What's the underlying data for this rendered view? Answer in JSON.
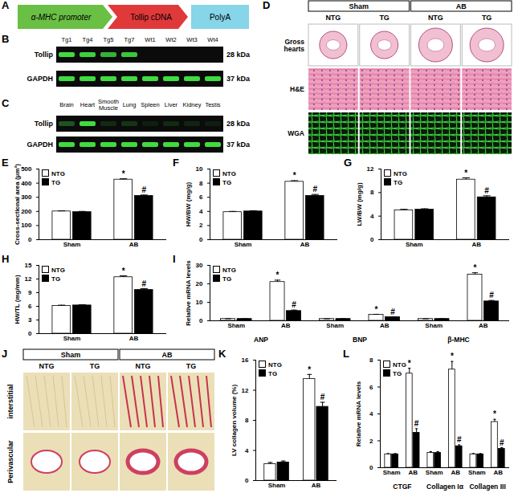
{
  "panels": {
    "A": {
      "letter": "A",
      "segments": [
        "α-MHC promoter",
        "Tollip cDNA",
        "PolyA"
      ]
    },
    "B": {
      "letter": "B",
      "lanes": [
        "Tg1",
        "Tg4",
        "Tg5",
        "Tg7",
        "Wt1",
        "Wt2",
        "Wt3",
        "Wt4"
      ],
      "bands": [
        {
          "name": "Tollip",
          "size": "28 kDa",
          "intensity": [
            1,
            0.95,
            0.8,
            0.9,
            0,
            0,
            0,
            0
          ]
        },
        {
          "name": "GAPDH",
          "size": "37 kDa",
          "intensity": [
            1,
            1,
            1,
            1,
            1,
            1,
            1,
            1
          ]
        }
      ]
    },
    "C": {
      "letter": "C",
      "lanes": [
        "Brain",
        "Heart",
        "Smooth Muscle",
        "Lung",
        "Spleen",
        "Liver",
        "Kidney",
        "Testis"
      ],
      "bands": [
        {
          "name": "Tollip",
          "size": "28 kDa",
          "intensity": [
            0.35,
            1,
            0.15,
            0.2,
            0.1,
            0.15,
            0.12,
            0.1
          ]
        },
        {
          "name": "GAPDH",
          "size": "37 kDa",
          "intensity": [
            1,
            1,
            1,
            1,
            1,
            1,
            1,
            1
          ]
        }
      ]
    },
    "D": {
      "letter": "D",
      "groups": [
        "Sham",
        "AB"
      ],
      "columns": [
        "NTG",
        "TG",
        "NTG",
        "TG"
      ],
      "rows": [
        "Gross hearts",
        "H&E",
        "WGA"
      ]
    },
    "J": {
      "letter": "J",
      "groups": [
        "Sham",
        "AB"
      ],
      "columns": [
        "NTG",
        "TG",
        "NTG",
        "TG"
      ],
      "rows": [
        "interstitial",
        "Perivascular"
      ]
    }
  },
  "chart_data": [
    {
      "type": "bar",
      "panel": "E",
      "ylabel": "Cross-sectional area (μm²)",
      "categories": [
        "Sham",
        "AB"
      ],
      "series": [
        {
          "name": "NTG",
          "color": "#ffffff",
          "values": [
            200,
            425
          ],
          "errors": [
            4,
            6
          ],
          "annotations": [
            null,
            "*"
          ]
        },
        {
          "name": "TG",
          "color": "#000000",
          "values": [
            195,
            310
          ],
          "errors": [
            5,
            6
          ],
          "annotations": [
            null,
            "#"
          ]
        }
      ],
      "ylim": [
        0,
        500
      ],
      "yticks": [
        0,
        100,
        200,
        300,
        400,
        500
      ],
      "legend": "top-left"
    },
    {
      "type": "bar",
      "panel": "F",
      "ylabel": "HW/BW (mg/g)",
      "categories": [
        "Sham",
        "AB"
      ],
      "series": [
        {
          "name": "NTG",
          "color": "#ffffff",
          "values": [
            3.9,
            8.2
          ],
          "errors": [
            0.1,
            0.15
          ],
          "annotations": [
            null,
            "*"
          ]
        },
        {
          "name": "TG",
          "color": "#000000",
          "values": [
            4.0,
            6.2
          ],
          "errors": [
            0.1,
            0.2
          ],
          "annotations": [
            null,
            "#"
          ]
        }
      ],
      "ylim": [
        0,
        10
      ],
      "yticks": [
        0,
        2,
        4,
        6,
        8,
        10
      ],
      "legend": "top-left"
    },
    {
      "type": "bar",
      "panel": "G",
      "ylabel": "LW/BW (mg/g)",
      "categories": [
        "Sham",
        "AB"
      ],
      "series": [
        {
          "name": "NTG",
          "color": "#ffffff",
          "values": [
            5.0,
            10.2
          ],
          "errors": [
            0.15,
            0.3
          ],
          "annotations": [
            null,
            "*"
          ]
        },
        {
          "name": "TG",
          "color": "#000000",
          "values": [
            5.1,
            7.2
          ],
          "errors": [
            0.15,
            0.25
          ],
          "annotations": [
            null,
            "#"
          ]
        }
      ],
      "ylim": [
        0,
        12
      ],
      "yticks": [
        0,
        4,
        8,
        12
      ],
      "legend": "top-left"
    },
    {
      "type": "bar",
      "panel": "H",
      "ylabel": "HW/TL (mg/mm)",
      "categories": [
        "Sham",
        "AB"
      ],
      "series": [
        {
          "name": "NTG",
          "color": "#ffffff",
          "values": [
            6.1,
            12.4
          ],
          "errors": [
            0.15,
            0.3
          ],
          "annotations": [
            null,
            "*"
          ]
        },
        {
          "name": "TG",
          "color": "#000000",
          "values": [
            6.2,
            9.6
          ],
          "errors": [
            0.15,
            0.3
          ],
          "annotations": [
            null,
            "#"
          ]
        }
      ],
      "ylim": [
        0,
        15
      ],
      "yticks": [
        0,
        3,
        6,
        9,
        12,
        15
      ],
      "legend": "top-left"
    },
    {
      "type": "bar",
      "panel": "I",
      "ylabel": "Relative mRNA levels",
      "groups": [
        "ANP",
        "BNP",
        "β-MHC"
      ],
      "categories": [
        "Sham",
        "AB",
        "Sham",
        "AB",
        "Sham",
        "AB"
      ],
      "series": [
        {
          "name": "NTG",
          "color": "#ffffff",
          "values": [
            1,
            21,
            1,
            3.3,
            1,
            25
          ],
          "errors": [
            0.1,
            1,
            0.1,
            0.2,
            0.1,
            1
          ],
          "annotations": [
            null,
            "*",
            null,
            "*",
            null,
            "*"
          ]
        },
        {
          "name": "TG",
          "color": "#000000",
          "values": [
            1,
            5.3,
            1,
            2.0,
            1,
            10.5
          ],
          "errors": [
            0.1,
            0.5,
            0.1,
            0.15,
            0.1,
            0.5
          ],
          "annotations": [
            null,
            "#",
            null,
            "#",
            null,
            "#"
          ]
        }
      ],
      "ylim": [
        0,
        30
      ],
      "yticks": [
        0,
        10,
        20,
        30
      ],
      "legend": "top-left"
    },
    {
      "type": "bar",
      "panel": "K",
      "ylabel": "LV collagen volume (%)",
      "categories": [
        "Sham",
        "AB"
      ],
      "series": [
        {
          "name": "NTG",
          "color": "#ffffff",
          "values": [
            2.2,
            13.5
          ],
          "errors": [
            0.2,
            0.6
          ],
          "annotations": [
            null,
            "*"
          ]
        },
        {
          "name": "TG",
          "color": "#000000",
          "values": [
            2.4,
            9.8
          ],
          "errors": [
            0.2,
            0.6
          ],
          "annotations": [
            null,
            "#"
          ]
        }
      ],
      "ylim": [
        0,
        16
      ],
      "yticks": [
        0,
        4,
        8,
        12,
        16
      ],
      "legend": "top-left"
    },
    {
      "type": "bar",
      "panel": "L",
      "ylabel": "Relative mRNA levels",
      "groups": [
        "CTGF",
        "Collagen Iα",
        "Collagen III"
      ],
      "categories": [
        "Sham",
        "AB",
        "Sham",
        "AB",
        "Sham",
        "AB"
      ],
      "series": [
        {
          "name": "NTG",
          "color": "#ffffff",
          "values": [
            1,
            7.0,
            1.1,
            7.3,
            1,
            3.4
          ],
          "errors": [
            0.05,
            0.4,
            0.1,
            0.6,
            0.05,
            0.2
          ],
          "annotations": [
            null,
            "*",
            null,
            "*",
            null,
            "*"
          ]
        },
        {
          "name": "TG",
          "color": "#000000",
          "values": [
            1,
            2.6,
            1.1,
            1.6,
            1,
            1.4
          ],
          "errors": [
            0.05,
            0.3,
            0.1,
            0.1,
            0.05,
            0.1
          ],
          "annotations": [
            null,
            "#",
            null,
            "#",
            null,
            "#"
          ]
        }
      ],
      "ylim": [
        0,
        8
      ],
      "yticks": [
        0,
        2,
        4,
        6,
        8
      ],
      "legend": "top-left"
    }
  ]
}
